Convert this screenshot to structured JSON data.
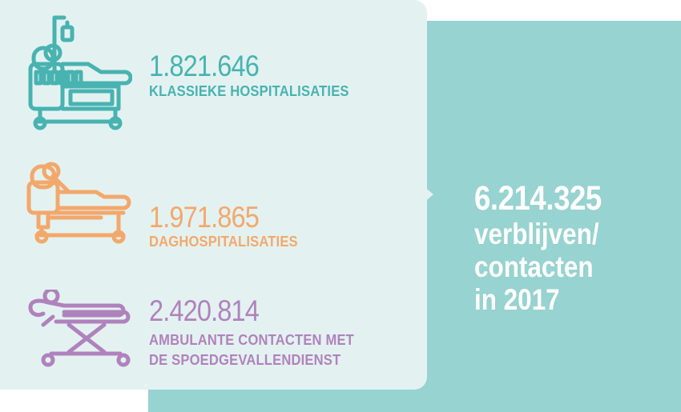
{
  "items": [
    {
      "value": "1.821.646",
      "label": "KLASSIEKE HOSPITALISATIES",
      "icon": "hospital-bed-iv-icon",
      "color": "#48b3b1"
    },
    {
      "value": "1.971.865",
      "label": "DAGHOSPITALISATIES",
      "icon": "day-bed-icon",
      "color": "#f3a86b"
    },
    {
      "value": "2.420.814",
      "label_line1": "AMBULANTE CONTACTEN MET",
      "label_line2": "DE SPOEDGEVALLENDIENST",
      "icon": "stretcher-icon",
      "color": "#b082bd"
    }
  ],
  "total": {
    "value": "6.214.325",
    "line1": "verblijven/",
    "line2": "contacten",
    "line3": "in 2017"
  },
  "colors": {
    "panel": "#97d3d0",
    "card": "#e3f2f1"
  }
}
